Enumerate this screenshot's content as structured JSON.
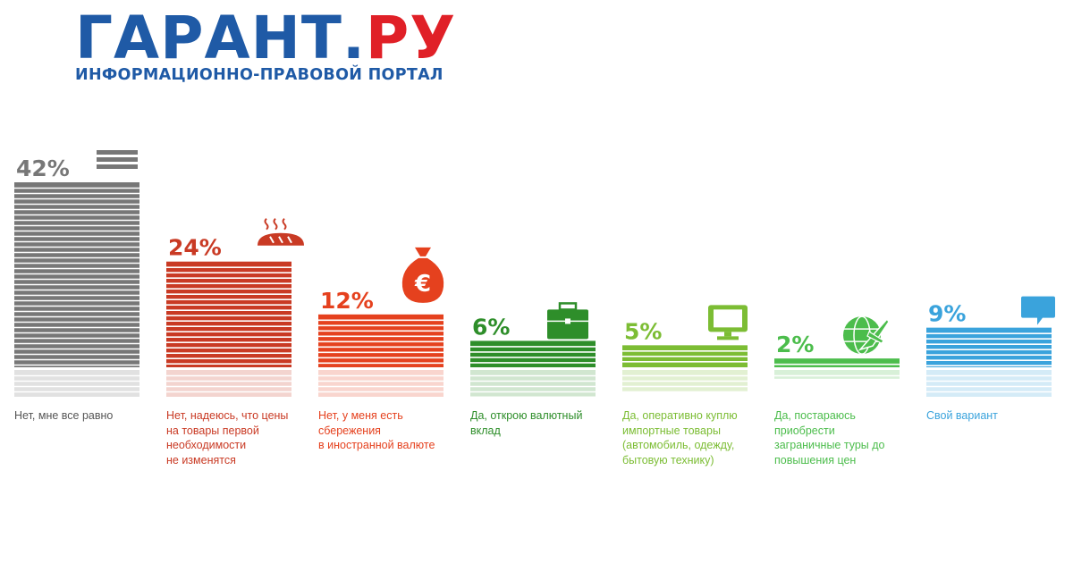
{
  "header": {
    "logo_part1": "ГАРАНТ.",
    "logo_part2": "РУ",
    "subtitle": "ИНФОРМАЦИОННО-ПРАВОВОЙ ПОРТАЛ",
    "colors": {
      "blue": "#1f5aa6",
      "red": "#e02027"
    }
  },
  "chart_data": {
    "type": "bar",
    "categories": [
      "Нет, мне все равно",
      "Нет, надеюсь, что цены на товары первой необходимости не изменятся",
      "Нет, у меня есть сбережения в иностранной валюте",
      "Да, открою валютный вклад",
      "Да, оперативно куплю импортные товары (автомобиль, одежду, бытовую технику)",
      "Да, постараюсь приобрести заграничные туры до повышения цен",
      "Свой вариант"
    ],
    "values": [
      42,
      24,
      12,
      6,
      5,
      2,
      9
    ],
    "value_labels": [
      "42%",
      "24%",
      "12%",
      "6%",
      "5%",
      "2%",
      "9%"
    ],
    "label_lines": [
      [
        "Нет, мне все равно"
      ],
      [
        "Нет, надеюсь, что цены",
        "на товары первой",
        "необходимости",
        "не изменятся"
      ],
      [
        "Нет, у меня есть",
        "сбережения",
        "в иностранной валюте"
      ],
      [
        "Да, открою валютный",
        "вклад"
      ],
      [
        "Да, оперативно куплю",
        "импортные товары",
        "(автомобиль, одежду,",
        "бытовую технику)"
      ],
      [
        "Да, постараюсь",
        "приобрести",
        "заграничные туры до",
        "повышения цен"
      ],
      [
        "Свой вариант"
      ]
    ],
    "colors": [
      "#777777",
      "#c93a24",
      "#e5411e",
      "#2e8e2a",
      "#7cbd34",
      "#4cbd4c",
      "#3aa3dc"
    ],
    "label_colors": [
      "#555555",
      "#c93a24",
      "#e5411e",
      "#2e8e2a",
      "#7cbd34",
      "#4cbd4c",
      "#3aa3dc"
    ],
    "icons": [
      "menu-lines-icon",
      "bread-icon",
      "money-bag-euro-icon",
      "briefcase-icon",
      "monitor-icon",
      "globe-plane-icon",
      "speech-bubble-icon"
    ],
    "ylim": [
      0,
      42
    ],
    "grid": false,
    "legend": "none"
  }
}
